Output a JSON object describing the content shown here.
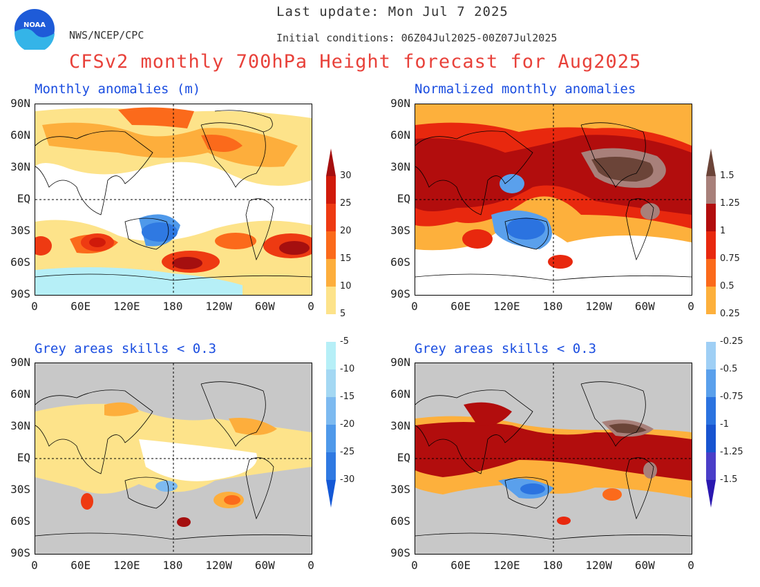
{
  "header": {
    "last_update": "Last update: Mon Jul 7 2025",
    "initial_conditions": "Initial conditions: 06Z04Jul2025-00Z07Jul2025",
    "org": "NWS/NCEP/CPC",
    "title": "CFSv2 monthly 700hPa Height forecast for Aug2025",
    "logo_text": "NOAA"
  },
  "panels": {
    "top_left": "Monthly anomalies (m)",
    "top_right": "Normalized monthly anomalies",
    "bottom_left": "Grey areas skills < 0.3",
    "bottom_right": "Grey areas skills < 0.3"
  },
  "axes": {
    "lat_labels": [
      "90N",
      "60N",
      "30N",
      "EQ",
      "30S",
      "60S",
      "90S"
    ],
    "lon_labels": [
      "0",
      "60E",
      "120E",
      "180",
      "120W",
      "60W",
      "0"
    ]
  },
  "colorbar_left": {
    "labels": [
      "30",
      "25",
      "20",
      "15",
      "10",
      "5",
      "-5",
      "-10",
      "-15",
      "-20",
      "-25",
      "-30"
    ],
    "warm_colors": [
      "#a50f0f",
      "#d01a0a",
      "#ee3a12",
      "#fb6a1b",
      "#fdae3c",
      "#fde38a"
    ],
    "cool_colors": [
      "#b6eff7",
      "#a4d8f3",
      "#7dbaf0",
      "#4f99ea",
      "#2f79e2",
      "#1458d6"
    ]
  },
  "colorbar_right": {
    "labels": [
      "1.5",
      "1.25",
      "1",
      "0.75",
      "0.5",
      "0.25",
      "-0.25",
      "-0.5",
      "-0.75",
      "-1",
      "-1.25",
      "-1.5"
    ],
    "warm_colors": [
      "#6b4438",
      "#a8807a",
      "#b20d0d",
      "#e8280e",
      "#fb6a1b",
      "#fdb03c"
    ],
    "cool_colors": [
      "#9fcff5",
      "#5aa0ec",
      "#2b73e0",
      "#1854d0",
      "#4a3ec8",
      "#2a18b0"
    ]
  },
  "grey_color": "#c8c8c8"
}
